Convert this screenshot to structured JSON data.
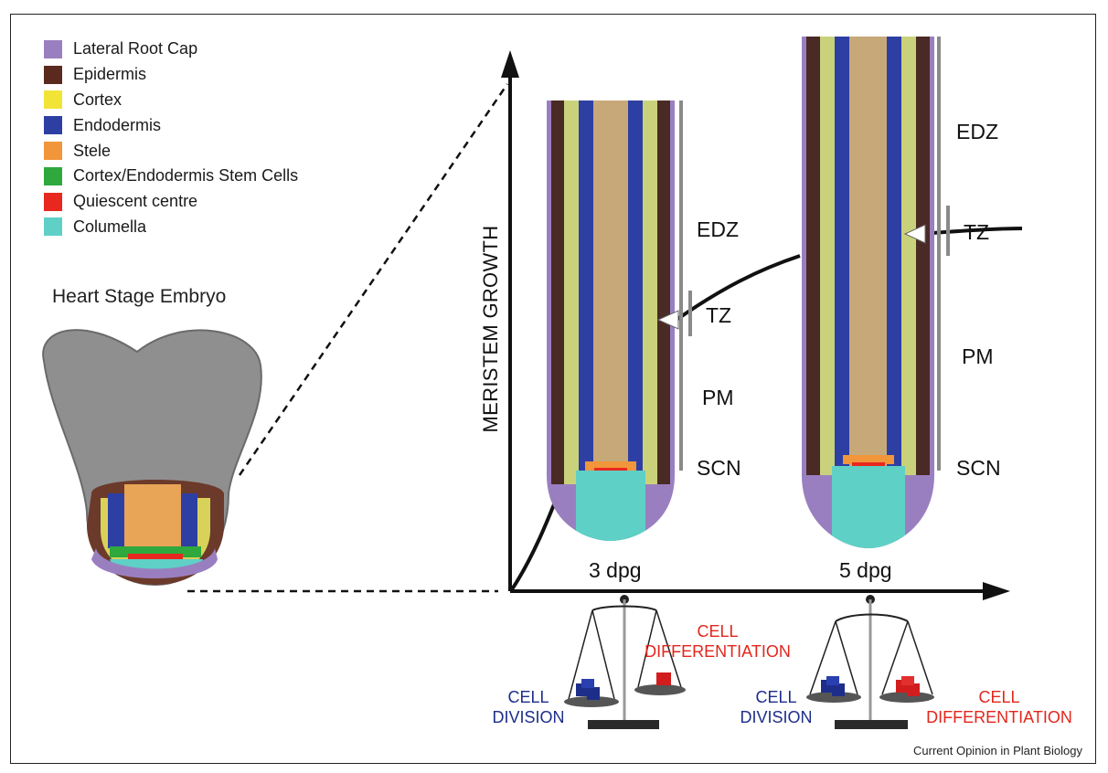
{
  "legend": {
    "items": [
      {
        "label": "Lateral Root Cap",
        "color": "#9a7fc0"
      },
      {
        "label": "Epidermis",
        "color": "#5a2a1e"
      },
      {
        "label": "Cortex",
        "color": "#f2e437"
      },
      {
        "label": "Endodermis",
        "color": "#2e3fa4"
      },
      {
        "label": "Stele",
        "color": "#f1963a"
      },
      {
        "label": "Cortex/Endodermis Stem Cells",
        "color": "#2fa83e"
      },
      {
        "label": "Quiescent centre",
        "color": "#e8271f"
      },
      {
        "label": "Columella",
        "color": "#5fd0c6"
      }
    ]
  },
  "embryo": {
    "title": "Heart Stage Embryo"
  },
  "graph": {
    "y_axis_label": "MERISTEM GROWTH"
  },
  "roots": {
    "left": {
      "stage": "3 dpg",
      "zones": {
        "edz": "EDZ",
        "tz": "TZ",
        "pm": "PM",
        "scn": "SCN"
      }
    },
    "right": {
      "stage": "5 dpg",
      "zones": {
        "edz": "EDZ",
        "tz": "TZ",
        "pm": "PM",
        "scn": "SCN"
      }
    }
  },
  "balances": {
    "left": {
      "division": "CELL\nDIVISION",
      "differentiation": "CELL\nDIFFERENTIATION"
    },
    "right": {
      "division": "CELL\nDIVISION",
      "differentiation": "CELL\nDIFFERENTIATION"
    }
  },
  "colors": {
    "division": "#1d2e8a",
    "differentiation": "#e2261c"
  },
  "source": "Current Opinion in Plant Biology"
}
